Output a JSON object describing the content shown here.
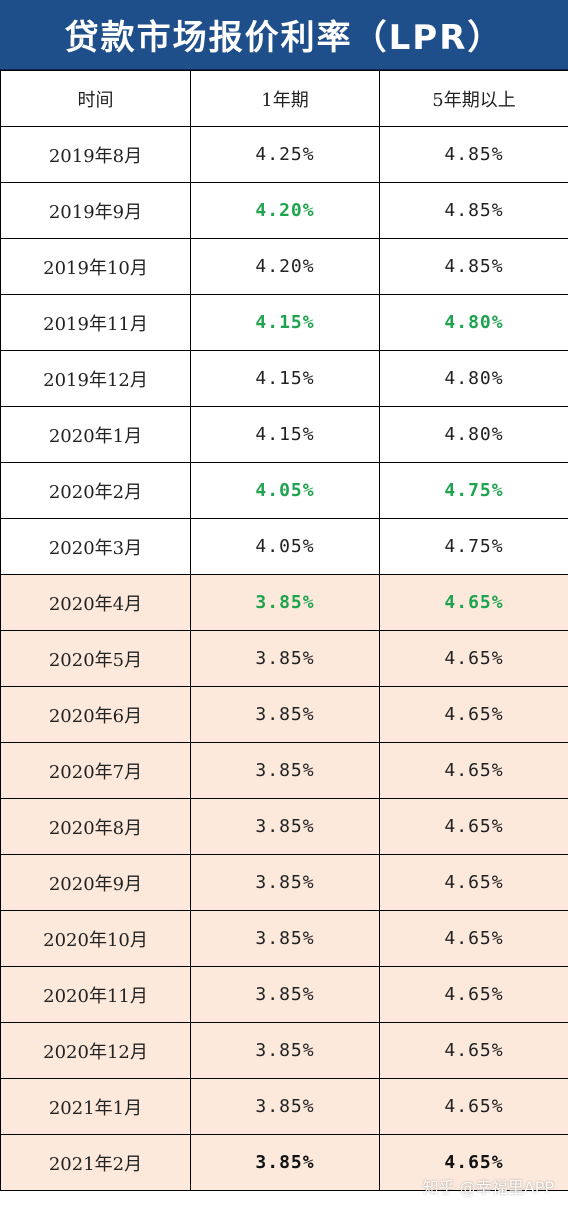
{
  "title": "贷款市场报价利率（LPR）",
  "columns": [
    "时间",
    "1年期",
    "5年期以上"
  ],
  "colors": {
    "header_bg": "#1f4f8a",
    "changed": "#1ea34f",
    "shade": "#fce9dc"
  },
  "rows": [
    {
      "date": "2019年8月",
      "one_year": "4.25%",
      "five_year": "4.85%",
      "one_changed": false,
      "five_changed": false,
      "shaded": false
    },
    {
      "date": "2019年9月",
      "one_year": "4.20%",
      "five_year": "4.85%",
      "one_changed": true,
      "five_changed": false,
      "shaded": false
    },
    {
      "date": "2019年10月",
      "one_year": "4.20%",
      "five_year": "4.85%",
      "one_changed": false,
      "five_changed": false,
      "shaded": false
    },
    {
      "date": "2019年11月",
      "one_year": "4.15%",
      "five_year": "4.80%",
      "one_changed": true,
      "five_changed": true,
      "shaded": false
    },
    {
      "date": "2019年12月",
      "one_year": "4.15%",
      "five_year": "4.80%",
      "one_changed": false,
      "five_changed": false,
      "shaded": false
    },
    {
      "date": "2020年1月",
      "one_year": "4.15%",
      "five_year": "4.80%",
      "one_changed": false,
      "five_changed": false,
      "shaded": false
    },
    {
      "date": "2020年2月",
      "one_year": "4.05%",
      "five_year": "4.75%",
      "one_changed": true,
      "five_changed": true,
      "shaded": false
    },
    {
      "date": "2020年3月",
      "one_year": "4.05%",
      "five_year": "4.75%",
      "one_changed": false,
      "five_changed": false,
      "shaded": false
    },
    {
      "date": "2020年4月",
      "one_year": "3.85%",
      "five_year": "4.65%",
      "one_changed": true,
      "five_changed": true,
      "shaded": true
    },
    {
      "date": "2020年5月",
      "one_year": "3.85%",
      "five_year": "4.65%",
      "one_changed": false,
      "five_changed": false,
      "shaded": true
    },
    {
      "date": "2020年6月",
      "one_year": "3.85%",
      "five_year": "4.65%",
      "one_changed": false,
      "five_changed": false,
      "shaded": true
    },
    {
      "date": "2020年7月",
      "one_year": "3.85%",
      "five_year": "4.65%",
      "one_changed": false,
      "five_changed": false,
      "shaded": true
    },
    {
      "date": "2020年8月",
      "one_year": "3.85%",
      "five_year": "4.65%",
      "one_changed": false,
      "five_changed": false,
      "shaded": true
    },
    {
      "date": "2020年9月",
      "one_year": "3.85%",
      "five_year": "4.65%",
      "one_changed": false,
      "five_changed": false,
      "shaded": true
    },
    {
      "date": "2020年10月",
      "one_year": "3.85%",
      "five_year": "4.65%",
      "one_changed": false,
      "five_changed": false,
      "shaded": true
    },
    {
      "date": "2020年11月",
      "one_year": "3.85%",
      "five_year": "4.65%",
      "one_changed": false,
      "five_changed": false,
      "shaded": true
    },
    {
      "date": "2020年12月",
      "one_year": "3.85%",
      "five_year": "4.65%",
      "one_changed": false,
      "five_changed": false,
      "shaded": true
    },
    {
      "date": "2021年1月",
      "one_year": "3.85%",
      "five_year": "4.65%",
      "one_changed": false,
      "five_changed": false,
      "shaded": true
    },
    {
      "date": "2021年2月",
      "one_year": "3.85%",
      "five_year": "4.65%",
      "one_changed": false,
      "five_changed": false,
      "shaded": true,
      "bold": true
    }
  ],
  "watermark": "知乎 @幸福里APP"
}
